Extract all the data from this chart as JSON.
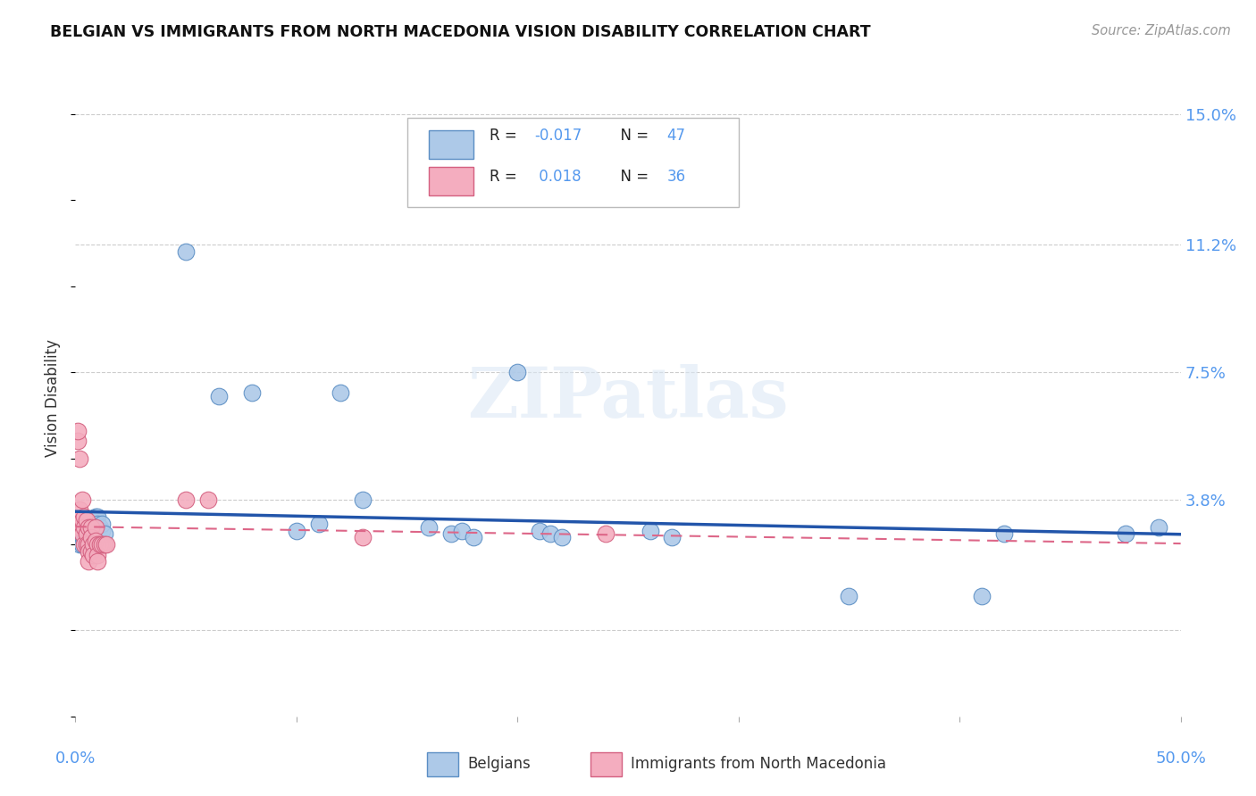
{
  "title": "BELGIAN VS IMMIGRANTS FROM NORTH MACEDONIA VISION DISABILITY CORRELATION CHART",
  "source": "Source: ZipAtlas.com",
  "ylabel": "Vision Disability",
  "watermark": "ZIPatlas",
  "belgian_color": "#adc9e8",
  "belgian_edge": "#5b8ec4",
  "macedonian_color": "#f4adbf",
  "macedonian_edge": "#d46080",
  "trend_belgian_color": "#2255aa",
  "trend_macedonian_color": "#dd6688",
  "R_belgian": -0.017,
  "N_belgian": 47,
  "R_macedonian": 0.018,
  "N_macedonian": 36,
  "xlim": [
    0.0,
    0.5
  ],
  "ylim": [
    -0.025,
    0.16
  ],
  "yticks": [
    0.0,
    0.038,
    0.075,
    0.112,
    0.15
  ],
  "ytick_labels": [
    "",
    "3.8%",
    "7.5%",
    "11.2%",
    "15.0%"
  ],
  "belgian_x": [
    0.001,
    0.002,
    0.002,
    0.003,
    0.003,
    0.004,
    0.004,
    0.005,
    0.005,
    0.006,
    0.006,
    0.007,
    0.007,
    0.007,
    0.008,
    0.008,
    0.009,
    0.009,
    0.01,
    0.01,
    0.01,
    0.011,
    0.012,
    0.012,
    0.013,
    0.05,
    0.065,
    0.08,
    0.1,
    0.11,
    0.12,
    0.13,
    0.16,
    0.17,
    0.175,
    0.18,
    0.2,
    0.21,
    0.215,
    0.22,
    0.26,
    0.27,
    0.35,
    0.41,
    0.42,
    0.475,
    0.49
  ],
  "belgian_y": [
    0.027,
    0.025,
    0.026,
    0.028,
    0.025,
    0.027,
    0.026,
    0.027,
    0.026,
    0.025,
    0.028,
    0.029,
    0.027,
    0.031,
    0.028,
    0.03,
    0.027,
    0.033,
    0.03,
    0.033,
    0.031,
    0.03,
    0.029,
    0.031,
    0.028,
    0.11,
    0.068,
    0.069,
    0.029,
    0.031,
    0.069,
    0.038,
    0.03,
    0.028,
    0.029,
    0.027,
    0.075,
    0.029,
    0.028,
    0.027,
    0.029,
    0.027,
    0.01,
    0.01,
    0.028,
    0.028,
    0.03
  ],
  "macedonian_x": [
    0.001,
    0.001,
    0.002,
    0.002,
    0.002,
    0.003,
    0.003,
    0.003,
    0.004,
    0.004,
    0.004,
    0.005,
    0.005,
    0.005,
    0.006,
    0.006,
    0.006,
    0.006,
    0.007,
    0.007,
    0.007,
    0.008,
    0.008,
    0.009,
    0.009,
    0.01,
    0.01,
    0.01,
    0.011,
    0.012,
    0.013,
    0.014,
    0.05,
    0.06,
    0.13,
    0.24
  ],
  "macedonian_y": [
    0.055,
    0.058,
    0.05,
    0.035,
    0.03,
    0.038,
    0.032,
    0.028,
    0.033,
    0.03,
    0.025,
    0.032,
    0.028,
    0.025,
    0.03,
    0.025,
    0.023,
    0.02,
    0.03,
    0.027,
    0.023,
    0.025,
    0.022,
    0.03,
    0.026,
    0.025,
    0.022,
    0.02,
    0.025,
    0.025,
    0.025,
    0.025,
    0.038,
    0.038,
    0.027,
    0.028
  ]
}
